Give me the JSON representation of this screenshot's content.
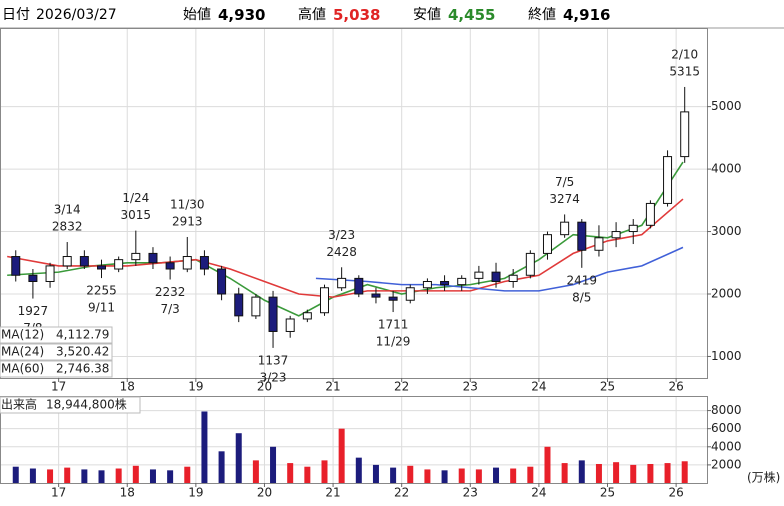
{
  "header": {
    "date_label": "日付",
    "date": "2026/03/27",
    "open_label": "始値",
    "open": "4,930",
    "high_label": "高値",
    "high": "5,038",
    "low_label": "安値",
    "low": "4,455",
    "close_label": "終値",
    "close": "4,916"
  },
  "chart_data": [
    {
      "type": "candlestick",
      "x": [
        2016.375,
        2016.625,
        2016.875,
        2017.125,
        2017.375,
        2017.625,
        2017.875,
        2018.125,
        2018.375,
        2018.625,
        2018.875,
        2019.125,
        2019.375,
        2019.625,
        2019.875,
        2020.125,
        2020.375,
        2020.625,
        2020.875,
        2021.125,
        2021.375,
        2021.625,
        2021.875,
        2022.125,
        2022.375,
        2022.625,
        2022.875,
        2023.125,
        2023.375,
        2023.625,
        2023.875,
        2024.125,
        2024.375,
        2024.625,
        2024.875,
        2025.125,
        2025.375,
        2025.625,
        2025.875,
        2026.125
      ],
      "open": [
        2600,
        2300,
        2200,
        2450,
        2600,
        2450,
        2400,
        2550,
        2650,
        2500,
        2400,
        2600,
        2400,
        2000,
        1650,
        1950,
        1400,
        1600,
        1700,
        2100,
        2250,
        2000,
        1950,
        1900,
        2100,
        2200,
        2150,
        2250,
        2350,
        2200,
        2300,
        2650,
        2950,
        3150,
        2700,
        2900,
        3000,
        3100,
        3450,
        4200
      ],
      "high": [
        2700,
        2400,
        2500,
        2832,
        2700,
        2550,
        2600,
        3015,
        2750,
        2600,
        2913,
        2700,
        2450,
        2100,
        2000,
        2050,
        1650,
        1750,
        2150,
        2428,
        2300,
        2100,
        2050,
        2150,
        2250,
        2300,
        2300,
        2450,
        2500,
        2400,
        2700,
        3000,
        3274,
        3200,
        3100,
        3150,
        3200,
        3500,
        4300,
        5315
      ],
      "low": [
        2200,
        1927,
        2100,
        2400,
        2400,
        2255,
        2350,
        2450,
        2400,
        2232,
        2350,
        2300,
        1900,
        1550,
        1600,
        1137,
        1300,
        1550,
        1650,
        2050,
        1950,
        1850,
        1711,
        1850,
        2000,
        2050,
        2050,
        2150,
        2100,
        2100,
        2250,
        2550,
        2900,
        2419,
        2600,
        2750,
        2800,
        3050,
        3400,
        4100
      ],
      "close": [
        2300,
        2200,
        2450,
        2600,
        2450,
        2400,
        2550,
        2650,
        2500,
        2400,
        2600,
        2400,
        2000,
        1650,
        1950,
        1400,
        1600,
        1700,
        2100,
        2250,
        2000,
        1950,
        1900,
        2100,
        2200,
        2150,
        2250,
        2350,
        2200,
        2300,
        2650,
        2950,
        3150,
        2700,
        2900,
        3000,
        3100,
        3450,
        4200,
        4916
      ],
      "up_color": "#ffffff",
      "down_color": "#1c1c7c",
      "xlim": [
        2016.16,
        2026.45
      ],
      "xticks": [
        {
          "value": 2017,
          "label": "17"
        },
        {
          "value": 2018,
          "label": "18"
        },
        {
          "value": 2019,
          "label": "19"
        },
        {
          "value": 2020,
          "label": "20"
        },
        {
          "value": 2021,
          "label": "21"
        },
        {
          "value": 2022,
          "label": "22"
        },
        {
          "value": 2023,
          "label": "23"
        },
        {
          "value": 2024,
          "label": "24"
        },
        {
          "value": 2025,
          "label": "25"
        },
        {
          "value": 2026,
          "label": "26"
        }
      ],
      "ylim": [
        655,
        6243
      ],
      "yticks": [
        1000,
        2000,
        3000,
        4000,
        5000
      ],
      "grid": true,
      "annotations": [
        {
          "date": "7/8",
          "price": 1927
        },
        {
          "date": "3/14",
          "price": 2832
        },
        {
          "date": "9/11",
          "price": 2255
        },
        {
          "date": "1/24",
          "price": 3015
        },
        {
          "date": "7/3",
          "price": 2232
        },
        {
          "date": "11/30",
          "price": 2913
        },
        {
          "date": "3/23",
          "price": 1137
        },
        {
          "date": "3/23",
          "price": 2428
        },
        {
          "date": "11/29",
          "price": 1711
        },
        {
          "date": "7/5",
          "price": 3274
        },
        {
          "date": "8/5",
          "price": 2419
        },
        {
          "date": "2/10",
          "price": 5315
        }
      ],
      "moving_averages": [
        {
          "name": "MA(12)",
          "latest": "4,112.79",
          "color": "#3a9a3a",
          "x": [
            2016.25,
            2017,
            2017.5,
            2018,
            2018.5,
            2019,
            2019.5,
            2020,
            2020.5,
            2021,
            2021.5,
            2022,
            2022.5,
            2023,
            2023.5,
            2024,
            2024.5,
            2025,
            2025.5,
            2026.1
          ],
          "values": [
            2300,
            2350,
            2450,
            2500,
            2500,
            2550,
            2250,
            1900,
            1650,
            1950,
            2150,
            2000,
            2100,
            2150,
            2250,
            2550,
            2950,
            2900,
            3100,
            4113
          ]
        },
        {
          "name": "MA(24)",
          "latest": "3,520.42",
          "color": "#e03a3a",
          "x": [
            2016.25,
            2017,
            2018,
            2019,
            2019.5,
            2020,
            2020.5,
            2021,
            2021.5,
            2022,
            2023,
            2023.5,
            2024,
            2024.5,
            2025,
            2025.5,
            2026.1
          ],
          "values": [
            2600,
            2450,
            2450,
            2550,
            2400,
            2200,
            2000,
            1950,
            2050,
            2050,
            2050,
            2200,
            2300,
            2650,
            2850,
            2950,
            3520
          ]
        },
        {
          "name": "MA(60)",
          "latest": "2,746.38",
          "color": "#4060d8",
          "x": [
            2020.75,
            2021.5,
            2022,
            2022.5,
            2023,
            2023.5,
            2024,
            2024.5,
            2025,
            2025.5,
            2026.1
          ],
          "values": [
            2250,
            2200,
            2150,
            2150,
            2100,
            2050,
            2050,
            2150,
            2350,
            2450,
            2746
          ]
        }
      ]
    },
    {
      "type": "bar",
      "title": "出来高",
      "latest": "18,944,800株",
      "unit": "(万株)",
      "x": [
        2016.375,
        2016.625,
        2016.875,
        2017.125,
        2017.375,
        2017.625,
        2017.875,
        2018.125,
        2018.375,
        2018.625,
        2018.875,
        2019.125,
        2019.375,
        2019.625,
        2019.875,
        2020.125,
        2020.375,
        2020.625,
        2020.875,
        2021.125,
        2021.375,
        2021.625,
        2021.875,
        2022.125,
        2022.375,
        2022.625,
        2022.875,
        2023.125,
        2023.375,
        2023.625,
        2023.875,
        2024.125,
        2024.375,
        2024.625,
        2024.875,
        2025.125,
        2025.375,
        2025.625,
        2025.875,
        2026.125
      ],
      "values": [
        1800,
        1600,
        1500,
        1700,
        1500,
        1400,
        1600,
        1900,
        1500,
        1400,
        1800,
        7900,
        3500,
        5500,
        2500,
        4000,
        2200,
        1800,
        2500,
        6000,
        2800,
        2000,
        1700,
        1900,
        1500,
        1400,
        1600,
        1500,
        1700,
        1600,
        1800,
        4000,
        2200,
        2500,
        2100,
        2300,
        2000,
        2100,
        2200,
        2400
      ],
      "up_color": "#e8202a",
      "down_color": "#1c1c7c",
      "xlim": [
        2016.16,
        2026.45
      ],
      "xticks": [
        {
          "value": 2017,
          "label": "17"
        },
        {
          "value": 2018,
          "label": "18"
        },
        {
          "value": 2019,
          "label": "19"
        },
        {
          "value": 2020,
          "label": "20"
        },
        {
          "value": 2021,
          "label": "21"
        },
        {
          "value": 2022,
          "label": "22"
        },
        {
          "value": 2023,
          "label": "23"
        },
        {
          "value": 2024,
          "label": "24"
        },
        {
          "value": 2025,
          "label": "25"
        },
        {
          "value": 2026,
          "label": "26"
        }
      ],
      "ylim": [
        0,
        9500
      ],
      "yticks": [
        2000,
        4000,
        6000,
        8000
      ],
      "grid": true
    }
  ]
}
